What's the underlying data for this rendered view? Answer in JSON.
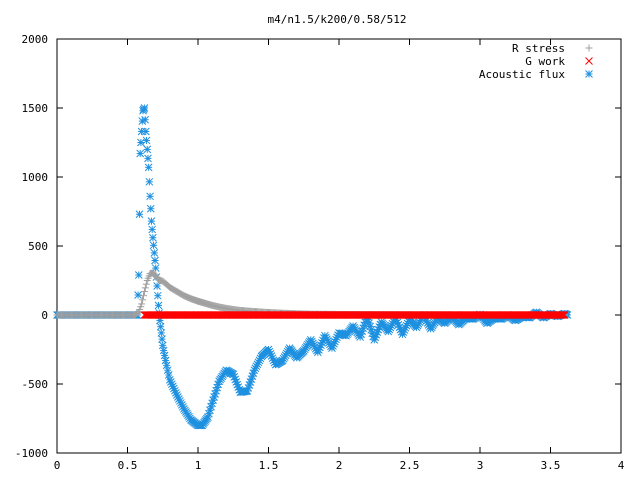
{
  "chart_data": {
    "type": "scatter",
    "title": "m4/n1.5/k200/0.58/512",
    "xlabel": "",
    "ylabel": "",
    "xlim": [
      0,
      4
    ],
    "ylim": [
      -1000,
      2000
    ],
    "x_ticks": [
      0,
      0.5,
      1,
      1.5,
      2,
      2.5,
      3,
      3.5,
      4
    ],
    "y_ticks": [
      -1000,
      -500,
      0,
      500,
      1000,
      1500,
      2000
    ],
    "x_tick_labels": [
      "0",
      "0.5",
      "1",
      "1.5",
      "2",
      "2.5",
      "3",
      "3.5",
      "4"
    ],
    "y_tick_labels": [
      "-1000",
      "-500",
      "0",
      "500",
      "1000",
      "1500",
      "2000"
    ],
    "grid": false,
    "legend_position": "top-right",
    "series": [
      {
        "name": "R stress",
        "marker": "plus",
        "color": "#a0a0a0",
        "points": [
          [
            0.0,
            0
          ],
          [
            0.3,
            0
          ],
          [
            0.55,
            0
          ],
          [
            0.58,
            20
          ],
          [
            0.6,
            80
          ],
          [
            0.62,
            170
          ],
          [
            0.64,
            250
          ],
          [
            0.66,
            300
          ],
          [
            0.68,
            305
          ],
          [
            0.7,
            285
          ],
          [
            0.72,
            255
          ],
          [
            0.75,
            245
          ],
          [
            0.78,
            220
          ],
          [
            0.8,
            200
          ],
          [
            0.85,
            170
          ],
          [
            0.9,
            140
          ],
          [
            0.95,
            118
          ],
          [
            1.0,
            100
          ],
          [
            1.05,
            85
          ],
          [
            1.1,
            70
          ],
          [
            1.15,
            58
          ],
          [
            1.2,
            48
          ],
          [
            1.25,
            40
          ],
          [
            1.3,
            33
          ],
          [
            1.4,
            25
          ],
          [
            1.5,
            18
          ],
          [
            1.6,
            13
          ],
          [
            1.7,
            9
          ],
          [
            1.8,
            6
          ],
          [
            2.0,
            4
          ],
          [
            2.3,
            2
          ],
          [
            2.6,
            1
          ],
          [
            3.0,
            0
          ],
          [
            3.6,
            0
          ]
        ]
      },
      {
        "name": "G work",
        "marker": "cross",
        "color": "#ff0000",
        "points": [
          [
            0.62,
            0
          ],
          [
            0.8,
            0
          ],
          [
            1.0,
            0
          ],
          [
            1.2,
            0
          ],
          [
            1.4,
            0
          ],
          [
            1.6,
            0
          ],
          [
            1.8,
            0
          ],
          [
            2.0,
            0
          ],
          [
            2.2,
            0
          ],
          [
            2.4,
            0
          ],
          [
            2.6,
            0
          ],
          [
            2.8,
            0
          ],
          [
            3.0,
            0
          ],
          [
            3.2,
            0
          ],
          [
            3.4,
            0
          ],
          [
            3.6,
            0
          ]
        ]
      },
      {
        "name": "Acoustic flux",
        "marker": "star",
        "color": "#1e90e0",
        "points": [
          [
            0.0,
            0
          ],
          [
            0.1,
            0
          ],
          [
            0.2,
            0
          ],
          [
            0.3,
            0
          ],
          [
            0.4,
            0
          ],
          [
            0.5,
            0
          ],
          [
            0.57,
            0
          ],
          [
            0.58,
            290
          ],
          [
            0.59,
            1170
          ],
          [
            0.6,
            1330
          ],
          [
            0.61,
            1480
          ],
          [
            0.62,
            1500
          ],
          [
            0.63,
            1330
          ],
          [
            0.64,
            1200
          ],
          [
            0.65,
            1070
          ],
          [
            0.66,
            860
          ],
          [
            0.67,
            680
          ],
          [
            0.68,
            560
          ],
          [
            0.69,
            450
          ],
          [
            0.7,
            340
          ],
          [
            0.71,
            210
          ],
          [
            0.72,
            70
          ],
          [
            0.73,
            -40
          ],
          [
            0.74,
            -130
          ],
          [
            0.75,
            -220
          ],
          [
            0.77,
            -330
          ],
          [
            0.8,
            -470
          ],
          [
            0.85,
            -580
          ],
          [
            0.9,
            -680
          ],
          [
            0.95,
            -760
          ],
          [
            1.0,
            -800
          ],
          [
            1.03,
            -800
          ],
          [
            1.07,
            -740
          ],
          [
            1.1,
            -640
          ],
          [
            1.15,
            -480
          ],
          [
            1.2,
            -400
          ],
          [
            1.25,
            -430
          ],
          [
            1.3,
            -560
          ],
          [
            1.35,
            -550
          ],
          [
            1.4,
            -400
          ],
          [
            1.45,
            -300
          ],
          [
            1.5,
            -250
          ],
          [
            1.55,
            -360
          ],
          [
            1.6,
            -330
          ],
          [
            1.65,
            -240
          ],
          [
            1.7,
            -310
          ],
          [
            1.75,
            -260
          ],
          [
            1.8,
            -180
          ],
          [
            1.85,
            -270
          ],
          [
            1.9,
            -150
          ],
          [
            1.95,
            -240
          ],
          [
            2.0,
            -130
          ],
          [
            2.05,
            -150
          ],
          [
            2.1,
            -80
          ],
          [
            2.15,
            -160
          ],
          [
            2.2,
            -10
          ],
          [
            2.25,
            -180
          ],
          [
            2.3,
            -50
          ],
          [
            2.35,
            -120
          ],
          [
            2.4,
            -20
          ],
          [
            2.45,
            -140
          ],
          [
            2.5,
            -30
          ],
          [
            2.55,
            -90
          ],
          [
            2.6,
            0
          ],
          [
            2.65,
            -100
          ],
          [
            2.7,
            -20
          ],
          [
            2.75,
            -60
          ],
          [
            2.8,
            -10
          ],
          [
            2.85,
            -70
          ],
          [
            2.9,
            -20
          ],
          [
            2.95,
            -30
          ],
          [
            3.0,
            5
          ],
          [
            3.05,
            -60
          ],
          [
            3.1,
            -20
          ],
          [
            3.15,
            -30
          ],
          [
            3.2,
            0
          ],
          [
            3.25,
            -40
          ],
          [
            3.3,
            -10
          ],
          [
            3.35,
            -20
          ],
          [
            3.4,
            20
          ],
          [
            3.45,
            -20
          ],
          [
            3.5,
            10
          ],
          [
            3.55,
            -10
          ],
          [
            3.6,
            10
          ],
          [
            3.62,
            0
          ]
        ]
      }
    ]
  }
}
